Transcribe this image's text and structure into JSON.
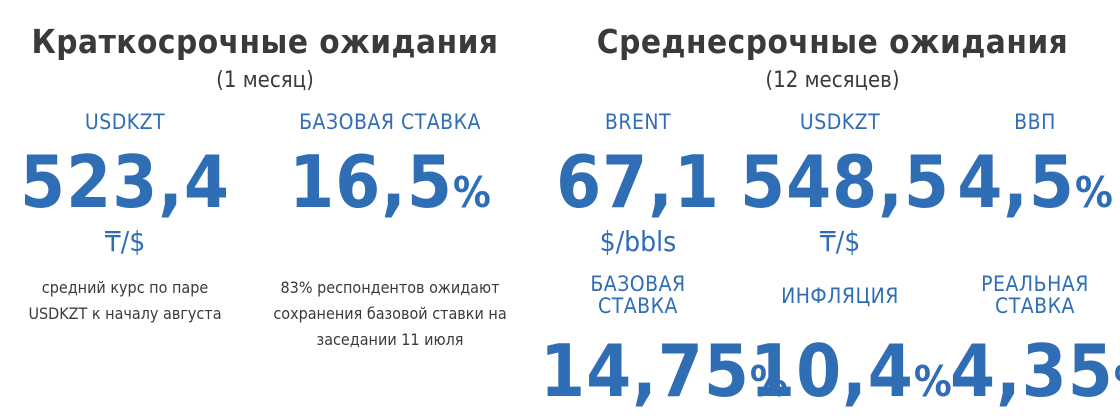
{
  "short_term": {
    "title": "Краткосрочные ожидания",
    "subtitle": "(1 месяц)",
    "usdkzt": {
      "label": "USDKZT",
      "value": "523,4",
      "unit": "₸/$",
      "note": "средний курс по паре USDKZT к началу августа"
    },
    "base_rate": {
      "label": "БАЗОВАЯ СТАВКА",
      "value": "16,5",
      "pct": "%",
      "note": "83% респондентов ожидают сохранения базовой ставки на заседании 11 июля"
    }
  },
  "medium_term": {
    "title": "Среднесрочные ожидания",
    "subtitle": "(12 месяцев)",
    "brent": {
      "label": "BRENT",
      "value": "67,1",
      "unit": "$/bbls"
    },
    "usdkzt": {
      "label": "USDKZT",
      "value": "548,5",
      "unit": "₸/$"
    },
    "gdp": {
      "label": "ВВП",
      "value": "4,5",
      "pct": "%"
    },
    "base_rate": {
      "label": "БАЗОВАЯ СТАВКА",
      "value": "14,75",
      "pct": "%"
    },
    "inflation": {
      "label": "ИНФЛЯЦИЯ",
      "value": "10,4",
      "pct": "%"
    },
    "real_rate": {
      "label": "РЕАЛЬНАЯ СТАВКА",
      "value": "4,35",
      "pct": "%"
    }
  }
}
